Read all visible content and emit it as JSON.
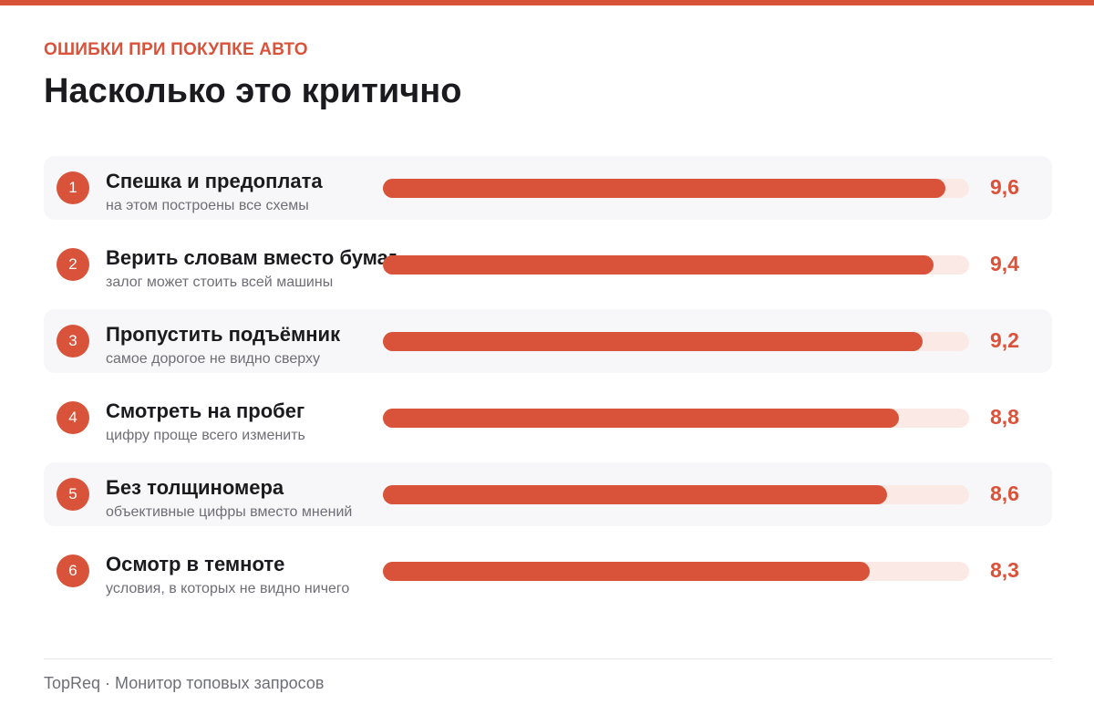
{
  "kicker": "ОШИБКИ ПРИ ПОКУПКЕ АВТО",
  "title": "Насколько это критично",
  "footer": "TopReq · Монитор топовых запросов",
  "colors": {
    "accent": "#d9533b",
    "track": "#fbe9e5",
    "row_shade": "#f7f7f9"
  },
  "chart_data": {
    "type": "bar",
    "orientation": "horizontal",
    "title": "Насколько это критично",
    "xlim": [
      0,
      10
    ],
    "grid": false,
    "items": [
      {
        "rank": "1",
        "label": "Спешка и предоплата",
        "sublabel": "на этом построены все схемы",
        "value": 9.6,
        "value_label": "9,6"
      },
      {
        "rank": "2",
        "label": "Верить словам вместо бумаг",
        "sublabel": "залог может стоить всей машины",
        "value": 9.4,
        "value_label": "9,4"
      },
      {
        "rank": "3",
        "label": "Пропустить подъёмник",
        "sublabel": "самое дорогое не видно сверху",
        "value": 9.2,
        "value_label": "9,2"
      },
      {
        "rank": "4",
        "label": "Смотреть на пробег",
        "sublabel": "цифру проще всего изменить",
        "value": 8.8,
        "value_label": "8,8"
      },
      {
        "rank": "5",
        "label": "Без толщиномера",
        "sublabel": "объективные цифры вместо мнений",
        "value": 8.6,
        "value_label": "8,6"
      },
      {
        "rank": "6",
        "label": "Осмотр в темноте",
        "sublabel": "условия, в которых не видно ничего",
        "value": 8.3,
        "value_label": "8,3"
      }
    ]
  }
}
